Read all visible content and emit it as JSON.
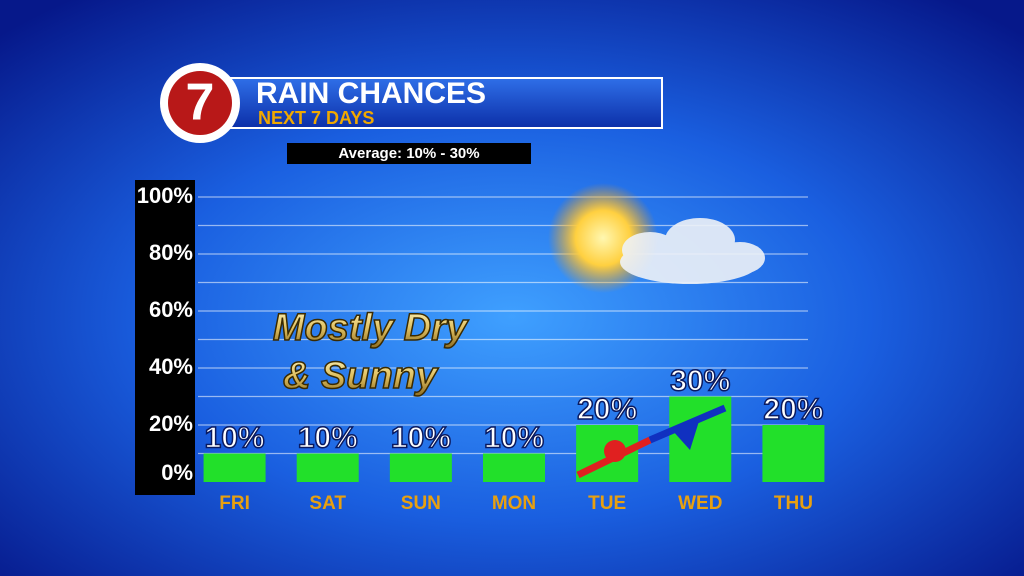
{
  "logo": "7",
  "chart_data": {
    "type": "bar",
    "title": "RAIN CHANCES",
    "subtitle": "NEXT 7 DAYS",
    "annotations": [
      "Average: 10% - 30%",
      "Mostly Dry",
      "& Sunny"
    ],
    "categories": [
      "FRI",
      "SAT",
      "SUN",
      "MON",
      "TUE",
      "WED",
      "THU"
    ],
    "values": [
      10,
      10,
      10,
      10,
      20,
      30,
      20
    ],
    "value_labels": [
      "10%",
      "10%",
      "10%",
      "10%",
      "20%",
      "30%",
      "20%"
    ],
    "color": "#22e02a",
    "ylim": [
      0,
      100
    ],
    "yticks": [
      {
        "value": 0,
        "label": "0%"
      },
      {
        "value": 20,
        "label": "20%"
      },
      {
        "value": 40,
        "label": "40%"
      },
      {
        "value": 60,
        "label": "60%"
      },
      {
        "value": 80,
        "label": "80%"
      },
      {
        "value": 100,
        "label": "100%"
      }
    ],
    "minor_yticks": [
      10,
      30,
      50,
      70,
      90
    ],
    "grid": true
  }
}
